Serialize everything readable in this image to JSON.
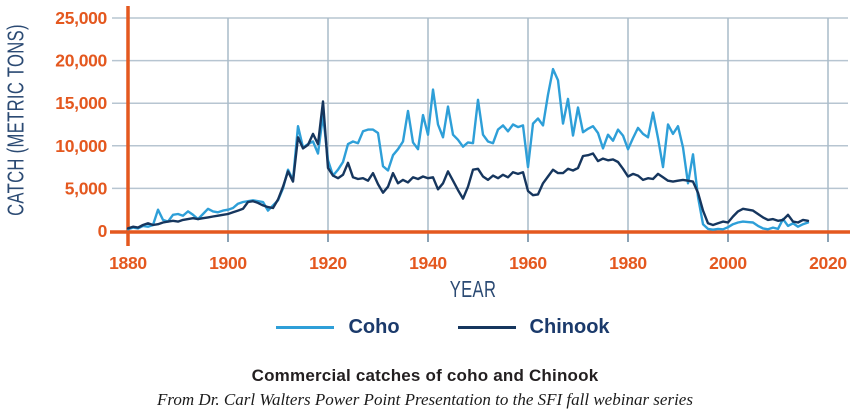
{
  "colors": {
    "axis_orange": "#e4581f",
    "tick_label_orange": "#e4581f",
    "grid_horizontal": "#b7c5d1",
    "grid_vertical": "#a9bbc9",
    "tick_mark": "#8aa2b5",
    "axis_title_navy": "#2b4a73",
    "legend_text_navy": "#1b3a6b",
    "coho_blue": "#2e9fd8",
    "chinook_navy": "#16365e",
    "caption_text": "#231f20"
  },
  "y_axis": {
    "title": "CATCH (METRIC TONS)"
  },
  "x_axis": {
    "title": "YEAR"
  },
  "legend": {
    "items": [
      {
        "label": "Coho",
        "color": "#2e9fd8"
      },
      {
        "label": "Chinook",
        "color": "#16365e"
      }
    ]
  },
  "caption": {
    "title": "Commercial catches of coho and Chinook",
    "source": "From Dr. Carl Walters Power Point Presentation to the SFI fall webinar series"
  },
  "chart_data": {
    "type": "line",
    "title": "Commercial catches of coho and Chinook",
    "xlabel": "YEAR",
    "ylabel": "CATCH (METRIC TONS)",
    "xlim": [
      1880,
      2020
    ],
    "ylim": [
      0,
      25000
    ],
    "grid": true,
    "legend_position": "bottom",
    "x_ticks": {
      "values": [
        1880,
        1900,
        1920,
        1940,
        1960,
        1980,
        2000,
        2020
      ],
      "labels": [
        "1880",
        "1900",
        "1920",
        "1940",
        "1960",
        "1980",
        "2000",
        "2020"
      ]
    },
    "y_ticks": {
      "values": [
        0,
        5000,
        10000,
        15000,
        20000,
        25000
      ],
      "labels": [
        "0",
        "5,000",
        "10,000",
        "15,000",
        "20,000",
        "25,000"
      ]
    },
    "x_start": 1880,
    "x_step": 1,
    "series": [
      {
        "name": "Coho",
        "color": "#2e9fd8",
        "values": [
          200,
          400,
          300,
          600,
          500,
          700,
          2500,
          1300,
          1100,
          1900,
          2000,
          1800,
          2300,
          1900,
          1400,
          2000,
          2600,
          2300,
          2200,
          2400,
          2500,
          2700,
          3200,
          3400,
          3500,
          3600,
          3500,
          3400,
          2400,
          3000,
          3600,
          5000,
          7200,
          6000,
          12300,
          9800,
          10200,
          10500,
          9100,
          13600,
          8300,
          6500,
          7200,
          8100,
          10200,
          10500,
          10300,
          11700,
          11900,
          11900,
          11500,
          7600,
          7100,
          8900,
          9600,
          10500,
          14100,
          10400,
          9600,
          13600,
          11300,
          16600,
          12500,
          11000,
          14600,
          11300,
          10700,
          9900,
          10400,
          10300,
          15400,
          11300,
          10500,
          10300,
          11900,
          12400,
          11700,
          12500,
          12200,
          12400,
          7500,
          12600,
          13200,
          12400,
          16000,
          19000,
          17700,
          12600,
          15500,
          11200,
          14500,
          11600,
          12000,
          12300,
          11500,
          9700,
          11300,
          10600,
          11900,
          11200,
          9600,
          10900,
          12100,
          11400,
          11000,
          13900,
          10900,
          7500,
          12500,
          11400,
          12300,
          9800,
          5600,
          9000,
          4000,
          800,
          250,
          150,
          250,
          200,
          450,
          800,
          1000,
          1100,
          1050,
          1000,
          600,
          300,
          200,
          400,
          250,
          1400,
          600,
          900,
          500,
          800,
          1000
        ]
      },
      {
        "name": "Chinook",
        "color": "#16365e",
        "values": [
          300,
          500,
          400,
          700,
          900,
          700,
          800,
          1000,
          1100,
          1200,
          1100,
          1300,
          1400,
          1500,
          1400,
          1500,
          1600,
          1700,
          1800,
          1900,
          2000,
          2200,
          2400,
          2600,
          3400,
          3500,
          3300,
          3000,
          2800,
          2700,
          3700,
          5200,
          7000,
          5800,
          11000,
          9700,
          10100,
          11400,
          10200,
          15200,
          7400,
          6500,
          6200,
          6600,
          8000,
          6300,
          6100,
          6200,
          5900,
          6800,
          5500,
          4500,
          5200,
          6800,
          5600,
          6000,
          5700,
          6300,
          6100,
          6400,
          6200,
          6300,
          4900,
          5600,
          7000,
          5900,
          4800,
          3800,
          5200,
          7200,
          7300,
          6400,
          6000,
          6500,
          6200,
          6600,
          6300,
          6900,
          6700,
          6900,
          4700,
          4200,
          4300,
          5600,
          6400,
          7200,
          6800,
          6800,
          7300,
          7100,
          7400,
          8800,
          8900,
          9100,
          8200,
          8500,
          8300,
          8400,
          8100,
          7300,
          6400,
          6700,
          6500,
          6000,
          6200,
          6100,
          6700,
          6300,
          5900,
          5800,
          5900,
          6000,
          5900,
          5800,
          4500,
          2400,
          900,
          700,
          900,
          1100,
          1000,
          1700,
          2300,
          2600,
          2500,
          2400,
          2000,
          1600,
          1300,
          1400,
          1200,
          1300,
          1900,
          1100,
          1000,
          1300,
          1200
        ]
      }
    ]
  }
}
